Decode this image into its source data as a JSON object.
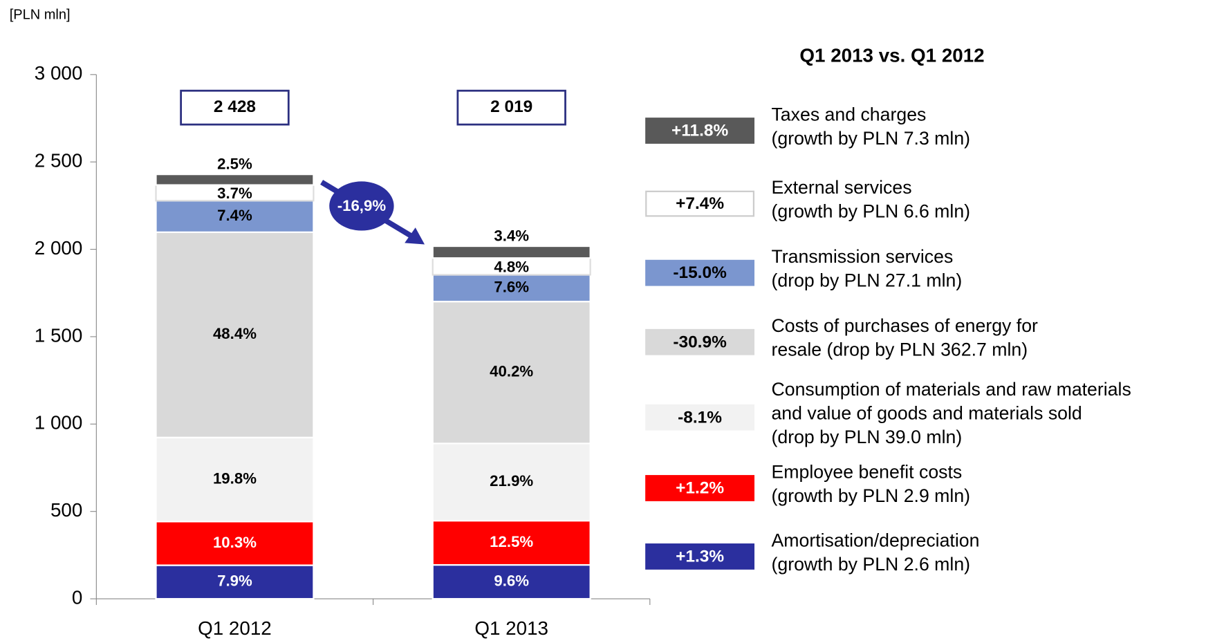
{
  "chart_data": {
    "type": "stacked_bar",
    "y_axis_label": "[PLN mln]",
    "legend_title": "Q1 2013 vs. Q1 2012",
    "categories": [
      "Q1 2012",
      "Q1 2013"
    ],
    "totals": [
      "2 428",
      "2 019"
    ],
    "change_label": "-16,9%",
    "ylim": [
      0,
      3000
    ],
    "yticks": [
      0,
      500,
      {
        "value": 1000,
        "label": "1 000"
      },
      {
        "value": 1500,
        "label": "1 500"
      },
      {
        "value": 2000,
        "label": "2 000"
      },
      {
        "value": 2500,
        "label": "2 500"
      },
      {
        "value": 3000,
        "label": "3 000"
      }
    ],
    "series": [
      {
        "color": "#2b2f9e",
        "values": [
          192,
          194
        ],
        "labels": [
          "7.9%",
          "9.6%"
        ],
        "change": "+1.3%",
        "legend_lines": [
          "Amortisation/depreciation",
          "(growth by PLN 2.6 mln)"
        ]
      },
      {
        "color": "#ff0000",
        "values": [
          250,
          253
        ],
        "labels": [
          "10.3%",
          "12.5%"
        ],
        "change": "+1.2%",
        "legend_lines": [
          "Employee benefit costs",
          "(growth by PLN 2.9 mln)"
        ]
      },
      {
        "color": "#f2f2f2",
        "values": [
          481,
          442
        ],
        "labels": [
          "19.8%",
          "21.9%"
        ],
        "change": "-8.1%",
        "legend_lines": [
          "Consumption of materials and raw materials",
          "and value of goods and materials sold",
          "(drop by PLN 39.0 mln)"
        ]
      },
      {
        "color": "#d9d9d9",
        "values": [
          1175,
          812
        ],
        "labels": [
          "48.4%",
          "40.2%"
        ],
        "change": "-30.9%",
        "legend_lines": [
          "Costs of purchases of energy for",
          "resale (drop by PLN 362.7 mln)"
        ]
      },
      {
        "color": "#7b96cf",
        "values": [
          180,
          153
        ],
        "labels": [
          "7.4%",
          "7.6%"
        ],
        "change": "-15.0%",
        "legend_lines": [
          "Transmission services",
          "(drop by PLN 27.1 mln)"
        ]
      },
      {
        "color": "#ffffff",
        "values": [
          90,
          96
        ],
        "labels": [
          "3.7%",
          "4.8%"
        ],
        "change": "+7.4%",
        "legend_lines": [
          "External services",
          "(growth by PLN 6.6 mln)"
        ]
      },
      {
        "color": "#595959",
        "values": [
          61,
          68
        ],
        "labels": [
          "2.5%",
          "3.4%"
        ],
        "change": "+11.8%",
        "legend_lines": [
          "Taxes and charges",
          "(growth by PLN 7.3 mln)"
        ]
      }
    ]
  }
}
